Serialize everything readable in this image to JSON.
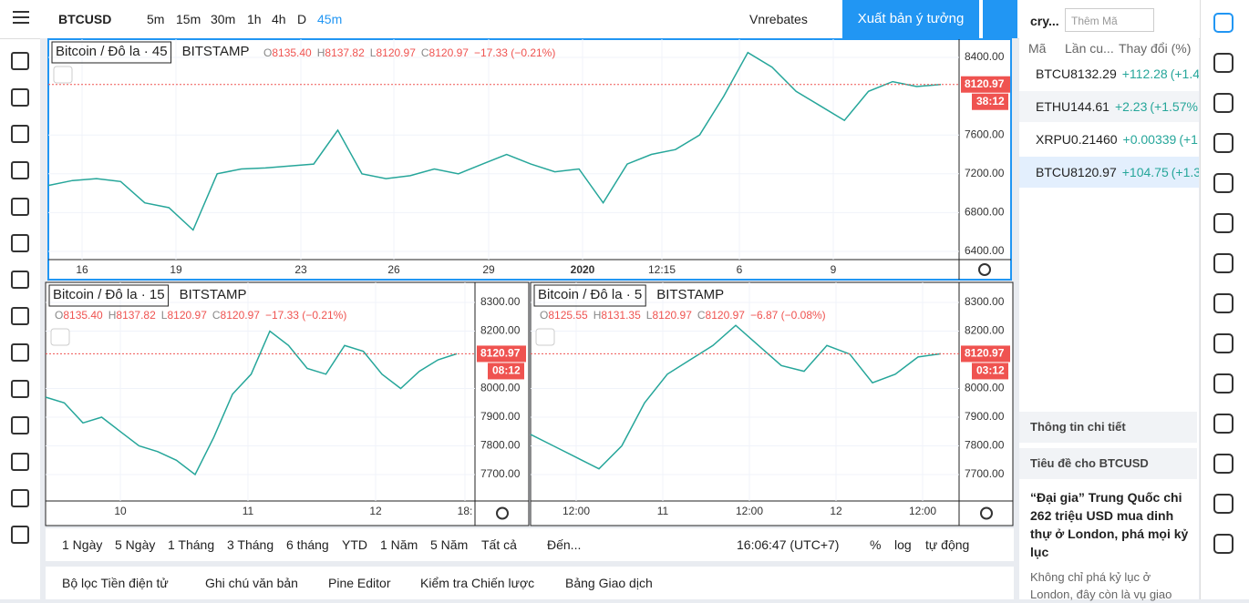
{
  "toolbar": {
    "symbol": "BTCUSD",
    "intervals": [
      "5m",
      "15m",
      "30m",
      "1h",
      "4h",
      "D",
      "45m"
    ],
    "active_interval": 6,
    "account": "Vnrebates",
    "publish": "Xuất bản ý tưởng"
  },
  "charts": [
    {
      "title": "Bitcoin / Đô la · 45",
      "exchange": "BITSTAMP",
      "ohlc": [
        [
          "O",
          "8135.40"
        ],
        [
          "H",
          "8137.82"
        ],
        [
          "L",
          "8120.97"
        ],
        [
          "C",
          "8120.97"
        ]
      ],
      "change": "−17.33 (−0.21%)",
      "countdown": "38:12",
      "last_price": 8120.97,
      "ylim": [
        6315,
        8588
      ],
      "yticks": [
        {
          "value": 6400,
          "label": "6400.00"
        },
        {
          "value": 6800,
          "label": "6800.00"
        },
        {
          "value": 7200,
          "label": "7200.00"
        },
        {
          "value": 7600,
          "label": "7600.00"
        },
        {
          "value": 8400,
          "label": "8400.00"
        }
      ],
      "xticks": [
        "16",
        "19",
        "23",
        "26",
        "29",
        "2020",
        "12:15",
        "6",
        "9"
      ],
      "close": [
        7080,
        7130,
        7150,
        7120,
        6900,
        6850,
        6620,
        7200,
        7250,
        7260,
        7280,
        7300,
        7650,
        7200,
        7150,
        7180,
        7250,
        7200,
        7300,
        7400,
        7300,
        7220,
        7250,
        6900,
        7300,
        7400,
        7450,
        7600,
        8000,
        8450,
        8300,
        8050,
        7900,
        7750,
        8050,
        8150,
        8100,
        8120.97
      ]
    },
    {
      "title": "Bitcoin / Đô la · 15",
      "exchange": "BITSTAMP",
      "ohlc": [
        [
          "O",
          "8135.40"
        ],
        [
          "H",
          "8137.82"
        ],
        [
          "L",
          "8120.97"
        ],
        [
          "C",
          "8120.97"
        ]
      ],
      "change": "−17.33 (−0.21%)",
      "countdown": "08:12",
      "last_price": 8120.97,
      "ylim": [
        7608,
        8370
      ],
      "yticks": [
        {
          "value": 7700,
          "label": "7700.00"
        },
        {
          "value": 7800,
          "label": "7800.00"
        },
        {
          "value": 7900,
          "label": "7900.00"
        },
        {
          "value": 8000,
          "label": "8000.00"
        },
        {
          "value": 8200,
          "label": "8200.00"
        },
        {
          "value": 8300,
          "label": "8300.00"
        }
      ],
      "xticks": [
        "10",
        "11",
        "12",
        "18:"
      ],
      "close": [
        7970,
        7950,
        7880,
        7900,
        7850,
        7800,
        7780,
        7750,
        7700,
        7830,
        7980,
        8050,
        8200,
        8150,
        8070,
        8050,
        8150,
        8130,
        8050,
        8000,
        8060,
        8100,
        8120.97
      ]
    },
    {
      "title": "Bitcoin / Đô la · 5",
      "exchange": "BITSTAMP",
      "ohlc": [
        [
          "O",
          "8125.55"
        ],
        [
          "H",
          "8131.35"
        ],
        [
          "L",
          "8120.97"
        ],
        [
          "C",
          "8120.97"
        ]
      ],
      "change": "−6.87 (−0.08%)",
      "countdown": "03:12",
      "last_price": 8120.97,
      "ylim": [
        7608,
        8370
      ],
      "yticks": [
        {
          "value": 7700,
          "label": "7700.00"
        },
        {
          "value": 7800,
          "label": "7800.00"
        },
        {
          "value": 7900,
          "label": "7900.00"
        },
        {
          "value": 8000,
          "label": "8000.00"
        },
        {
          "value": 8200,
          "label": "8200.00"
        },
        {
          "value": 8300,
          "label": "8300.00"
        }
      ],
      "xticks": [
        "12:00",
        "11",
        "12:00",
        "12",
        "12:00"
      ],
      "close": [
        7840,
        7800,
        7760,
        7720,
        7800,
        7950,
        8050,
        8100,
        8150,
        8220,
        8150,
        8080,
        8060,
        8150,
        8120,
        8020,
        8050,
        8110,
        8120.97
      ]
    }
  ],
  "watchlist": {
    "list": "cry...",
    "search": "Thêm Mã",
    "columns": [
      "Mã",
      "Lần cu...",
      "Thay đổi (%)"
    ],
    "rows": [
      [
        "BTCU",
        "8132.29",
        "+112.28",
        "(+1.4"
      ],
      [
        "ETHU",
        "144.61",
        "+2.23",
        "(+1.57%"
      ],
      [
        "XRPU",
        "0.21460",
        "+0.00339",
        "(+1."
      ],
      [
        "BTCU",
        "8120.97",
        "+104.75",
        "(+1.3"
      ]
    ]
  },
  "details": "Thông tin chi tiết",
  "news": {
    "header": "Tiêu đề cho BTCUSD",
    "headline": "“Đại gia” Trung Quốc chi 262 triệu USD mua dinh thự ở London, phá mọi kỷ lục",
    "snippet": "Không chỉ phá kỷ lục ở London, đây còn là vụ giao"
  },
  "ranges": [
    "1 Ngày",
    "5 Ngày",
    "1 Tháng",
    "3 Tháng",
    "6 tháng",
    "YTD",
    "1 Năm",
    "5 Năm",
    "Tất cả"
  ],
  "goto": "Đến...",
  "clock": "16:06:47 (UTC+7)",
  "scale_opts": [
    "%",
    "log",
    "tự động"
  ],
  "tabs": [
    "Bộ lọc Tiền điện tử",
    "Ghi chú văn bản",
    "Pine Editor",
    "Kiểm tra Chiến lược",
    "Bảng Giao dịch"
  ]
}
